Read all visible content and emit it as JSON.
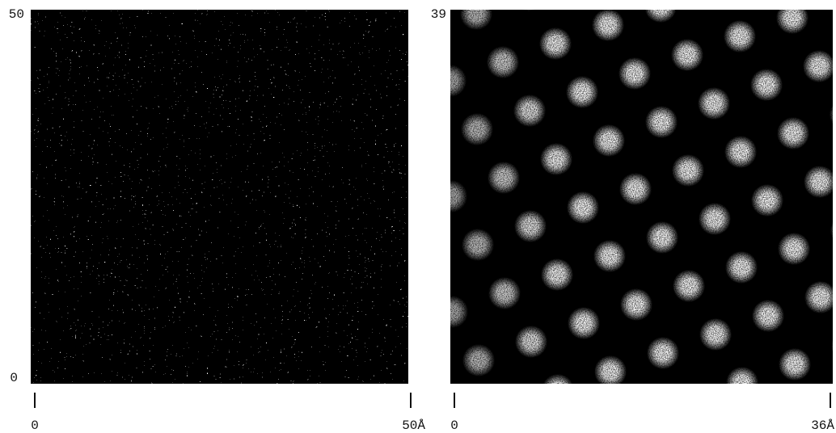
{
  "panels": [
    {
      "y_top": "50",
      "y_bottom": "0",
      "x_left": "0",
      "x_right": "50Å"
    },
    {
      "y_top": "39",
      "x_left": "0",
      "x_right": "36Å"
    }
  ]
}
